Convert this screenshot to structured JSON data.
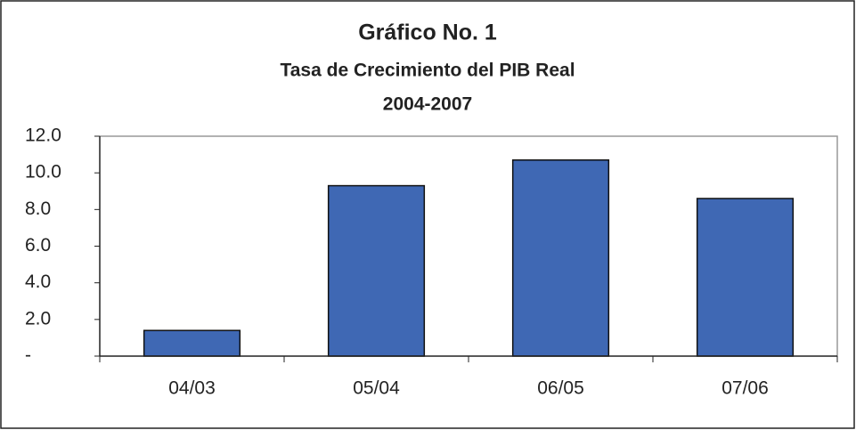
{
  "chart_data": {
    "type": "bar",
    "title": "Gráfico No. 1",
    "subtitle": [
      "Tasa de Crecimiento del PIB Real",
      "2004-2007"
    ],
    "categories": [
      "04/03",
      "05/04",
      "06/05",
      "07/06"
    ],
    "values": [
      1.4,
      9.3,
      10.7,
      8.6
    ],
    "color": "#3f68b4",
    "ylim": [
      0,
      12
    ],
    "yticks": [
      {
        "value": 0,
        "label": "-"
      },
      {
        "value": 2,
        "label": "2.0"
      },
      {
        "value": 4,
        "label": "4.0"
      },
      {
        "value": 6,
        "label": "6.0"
      },
      {
        "value": 8,
        "label": "8.0"
      },
      {
        "value": 10,
        "label": "10.0"
      },
      {
        "value": 12,
        "label": "12.0"
      }
    ],
    "grid": false
  }
}
